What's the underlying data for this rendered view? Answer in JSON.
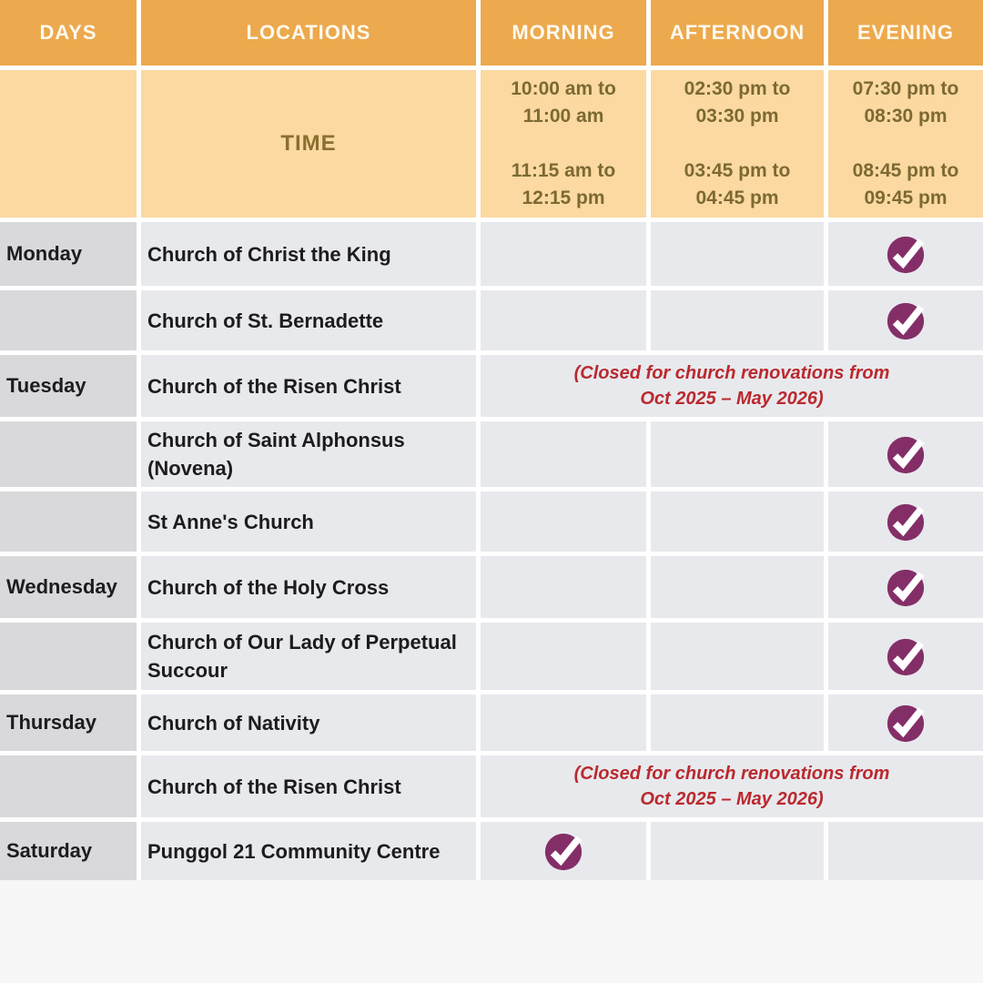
{
  "colors": {
    "header_bg": "#ECA94D",
    "header_text": "#FEF9EE",
    "time_bg": "#FBD9A1",
    "time_label": "#8A7030",
    "time_text": "#7C6933",
    "day_cell_bg": "#D9D9DC",
    "cell_bg": "#E8E9ED",
    "row_text": "#1C1C1E",
    "note_text": "#B9292E",
    "check_bg": "#842E68",
    "check_mark": "#FFFFFF",
    "page_bg": "#F7F7F8",
    "grid_gap": "#FFFFFF"
  },
  "header": {
    "days": "DAYS",
    "locations": "LOCATIONS",
    "morning": "MORNING",
    "afternoon": "AFTERNOON",
    "evening": "EVENING"
  },
  "time_row": {
    "label": "TIME",
    "morning": "10:00 am to\n11:00 am\n\n11:15 am to\n12:15 pm",
    "afternoon": "02:30 pm to\n03:30 pm\n\n03:45 pm to\n04:45 pm",
    "evening": "07:30 pm to\n08:30 pm\n\n08:45 pm to\n09:45 pm"
  },
  "rows": [
    {
      "day": "Monday",
      "location": "Church of Christ the King",
      "morning": false,
      "afternoon": false,
      "evening": true
    },
    {
      "day": "",
      "location": "Church of St. Bernadette",
      "morning": false,
      "afternoon": false,
      "evening": true
    },
    {
      "day": "Tuesday",
      "location": "Church of the Risen Christ",
      "note": "(Closed for church renovations from\nOct 2025 – May 2026)"
    },
    {
      "day": "",
      "location": "Church of Saint Alphonsus (Novena)",
      "morning": false,
      "afternoon": false,
      "evening": true
    },
    {
      "day": "",
      "location": "St Anne's Church",
      "morning": false,
      "afternoon": false,
      "evening": true
    },
    {
      "day": "Wednesday",
      "location": "Church of the Holy Cross",
      "morning": false,
      "afternoon": false,
      "evening": true
    },
    {
      "day": "",
      "location": "Church of Our Lady of Perpetual Succour",
      "morning": false,
      "afternoon": false,
      "evening": true
    },
    {
      "day": "Thursday",
      "location": "Church of Nativity",
      "morning": false,
      "afternoon": false,
      "evening": true
    },
    {
      "day": "",
      "location": "Church of the Risen Christ",
      "note": "(Closed for church renovations from\nOct 2025 – May 2026)"
    },
    {
      "day": "Saturday",
      "location": "Punggol 21 Community Centre",
      "morning": true,
      "afternoon": false,
      "evening": false
    }
  ]
}
